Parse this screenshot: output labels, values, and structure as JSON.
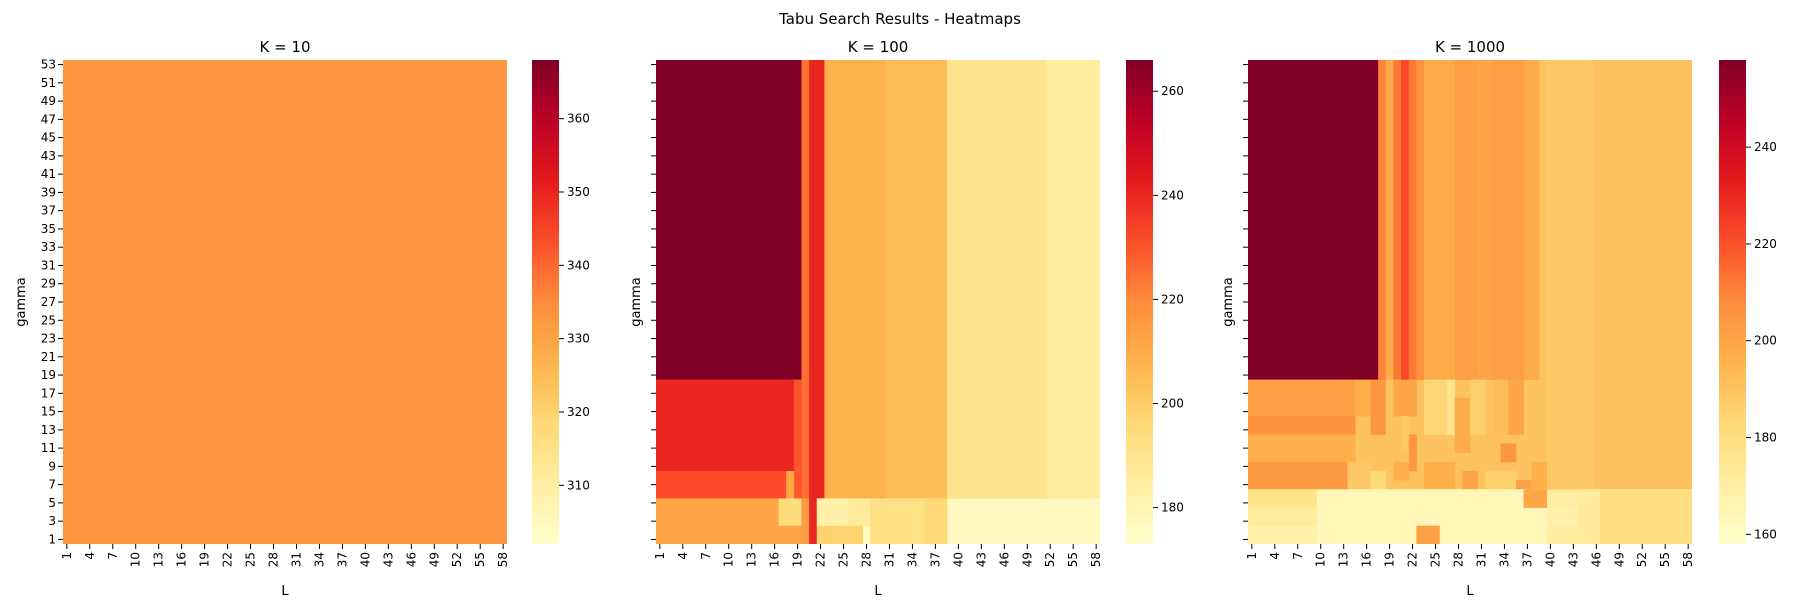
{
  "figure": {
    "suptitle": "Tabu Search Results - Heatmaps"
  },
  "colormap": {
    "name": "YlOrRd",
    "stops": [
      "#ffffcc",
      "#ffeda0",
      "#fed976",
      "#feb24c",
      "#fd8d3c",
      "#fc4e2a",
      "#e31a1c",
      "#bd0026",
      "#800026"
    ]
  },
  "chart_data": [
    {
      "type": "heatmap",
      "title": "K = 10",
      "xlabel": "L",
      "ylabel": "gamma",
      "x_tick_labels": [
        "1",
        "4",
        "7",
        "10",
        "13",
        "16",
        "19",
        "22",
        "25",
        "28",
        "31",
        "34",
        "37",
        "40",
        "43",
        "46",
        "49",
        "52",
        "55",
        "58"
      ],
      "y_tick_labels": [
        "53",
        "51",
        "49",
        "47",
        "45",
        "43",
        "41",
        "39",
        "37",
        "35",
        "33",
        "31",
        "29",
        "27",
        "25",
        "23",
        "21",
        "19",
        "17",
        "15",
        "13",
        "11",
        "9",
        "7",
        "5",
        "3",
        "1"
      ],
      "x_range": [
        1,
        59
      ],
      "y_range": [
        1,
        54
      ],
      "colorbar": {
        "range": [
          302,
          368
        ],
        "ticks": [
          "310",
          "320",
          "330",
          "340",
          "350",
          "360"
        ]
      },
      "regions": [
        {
          "L": [
            1,
            59
          ],
          "gamma": [
            1,
            54
          ],
          "value": 333
        }
      ]
    },
    {
      "type": "heatmap",
      "title": "K = 100",
      "xlabel": "L",
      "ylabel": "gamma",
      "show_y_tick_labels": false,
      "x_tick_labels": [
        "1",
        "4",
        "7",
        "10",
        "13",
        "16",
        "19",
        "22",
        "25",
        "28",
        "31",
        "34",
        "37",
        "40",
        "43",
        "46",
        "49",
        "52",
        "55",
        "58"
      ],
      "x_range": [
        1,
        59
      ],
      "y_range": [
        1,
        54
      ],
      "colorbar": {
        "range": [
          173,
          266
        ],
        "ticks": [
          "180",
          "200",
          "220",
          "240",
          "260"
        ]
      },
      "regions": [
        {
          "L": [
            1,
            59
          ],
          "gamma": [
            6,
            54
          ],
          "value": 203
        },
        {
          "L": [
            1,
            59
          ],
          "gamma": [
            1,
            6
          ],
          "value": 176
        },
        {
          "L": [
            1,
            20
          ],
          "gamma": [
            19,
            54
          ],
          "value": 266
        },
        {
          "L": [
            1,
            19
          ],
          "gamma": [
            9,
            19
          ],
          "value": 240
        },
        {
          "L": [
            1,
            18
          ],
          "gamma": [
            6,
            9
          ],
          "value": 232
        },
        {
          "L": [
            19,
            20
          ],
          "gamma": [
            6,
            19
          ],
          "value": 230
        },
        {
          "L": [
            18,
            19
          ],
          "gamma": [
            6,
            9
          ],
          "value": 212
        },
        {
          "L": [
            20,
            21
          ],
          "gamma": [
            6,
            54
          ],
          "value": 225
        },
        {
          "L": [
            21,
            23
          ],
          "gamma": [
            6,
            54
          ],
          "value": 240
        },
        {
          "L": [
            23,
            31
          ],
          "gamma": [
            6,
            54
          ],
          "value": 208
        },
        {
          "L": [
            31,
            39
          ],
          "gamma": [
            6,
            54
          ],
          "value": 205
        },
        {
          "L": [
            39,
            52
          ],
          "gamma": [
            6,
            54
          ],
          "value": 190
        },
        {
          "L": [
            52,
            59
          ],
          "gamma": [
            6,
            54
          ],
          "value": 185
        },
        {
          "L": [
            1,
            17
          ],
          "gamma": [
            1,
            6
          ],
          "value": 212
        },
        {
          "L": [
            17,
            20
          ],
          "gamma": [
            3,
            6
          ],
          "value": 195
        },
        {
          "L": [
            17,
            20
          ],
          "gamma": [
            1,
            3
          ],
          "value": 212
        },
        {
          "L": [
            20,
            21
          ],
          "gamma": [
            1,
            6
          ],
          "value": 215
        },
        {
          "L": [
            21,
            22
          ],
          "gamma": [
            1,
            6
          ],
          "value": 240
        },
        {
          "L": [
            22,
            26
          ],
          "gamma": [
            3,
            6
          ],
          "value": 182
        },
        {
          "L": [
            26,
            29
          ],
          "gamma": [
            3,
            6
          ],
          "value": 186
        },
        {
          "L": [
            22,
            28
          ],
          "gamma": [
            1,
            3
          ],
          "value": 198
        },
        {
          "L": [
            29,
            38
          ],
          "gamma": [
            1,
            6
          ],
          "value": 192
        },
        {
          "L": [
            36,
            39
          ],
          "gamma": [
            1,
            6
          ],
          "value": 196
        }
      ]
    },
    {
      "type": "heatmap",
      "title": "K = 1000",
      "xlabel": "L",
      "ylabel": "gamma",
      "show_y_tick_labels": false,
      "x_tick_labels": [
        "1",
        "4",
        "7",
        "10",
        "13",
        "16",
        "19",
        "22",
        "25",
        "28",
        "31",
        "34",
        "37",
        "40",
        "43",
        "46",
        "49",
        "52",
        "55",
        "58"
      ],
      "x_range": [
        1,
        59
      ],
      "y_range": [
        1,
        54
      ],
      "colorbar": {
        "range": [
          158,
          258
        ],
        "ticks": [
          "160",
          "180",
          "200",
          "220",
          "240"
        ]
      },
      "regions": [
        {
          "L": [
            1,
            59
          ],
          "gamma": [
            7,
            54
          ],
          "value": 190
        },
        {
          "L": [
            1,
            59
          ],
          "gamma": [
            1,
            7
          ],
          "value": 170
        },
        {
          "L": [
            1,
            18
          ],
          "gamma": [
            19,
            54
          ],
          "value": 258
        },
        {
          "L": [
            18,
            19
          ],
          "gamma": [
            19,
            54
          ],
          "value": 210
        },
        {
          "L": [
            19,
            20
          ],
          "gamma": [
            19,
            54
          ],
          "value": 198
        },
        {
          "L": [
            20,
            21
          ],
          "gamma": [
            19,
            54
          ],
          "value": 212
        },
        {
          "L": [
            21,
            22
          ],
          "gamma": [
            19,
            54
          ],
          "value": 222
        },
        {
          "L": [
            22,
            23
          ],
          "gamma": [
            19,
            54
          ],
          "value": 212
        },
        {
          "L": [
            23,
            24
          ],
          "gamma": [
            19,
            54
          ],
          "value": 206
        },
        {
          "L": [
            24,
            28
          ],
          "gamma": [
            19,
            54
          ],
          "value": 198
        },
        {
          "L": [
            28,
            31
          ],
          "gamma": [
            19,
            54
          ],
          "value": 202
        },
        {
          "L": [
            31,
            33
          ],
          "gamma": [
            19,
            54
          ],
          "value": 200
        },
        {
          "L": [
            33,
            37
          ],
          "gamma": [
            19,
            54
          ],
          "value": 202
        },
        {
          "L": [
            37,
            39
          ],
          "gamma": [
            19,
            54
          ],
          "value": 198
        },
        {
          "L": [
            40,
            46
          ],
          "gamma": [
            7,
            54
          ],
          "value": 188
        },
        {
          "L": [
            1,
            15
          ],
          "gamma": [
            15,
            19
          ],
          "value": 202
        },
        {
          "L": [
            1,
            15
          ],
          "gamma": [
            13,
            15
          ],
          "value": 206
        },
        {
          "L": [
            1,
            15
          ],
          "gamma": [
            10,
            13
          ],
          "value": 196
        },
        {
          "L": [
            1,
            14
          ],
          "gamma": [
            7,
            10
          ],
          "value": 204
        },
        {
          "L": [
            15,
            17
          ],
          "gamma": [
            15,
            19
          ],
          "value": 196
        },
        {
          "L": [
            17,
            19
          ],
          "gamma": [
            13,
            19
          ],
          "value": 205
        },
        {
          "L": [
            19,
            20
          ],
          "gamma": [
            11,
            19
          ],
          "value": 190
        },
        {
          "L": [
            20,
            23
          ],
          "gamma": [
            15,
            19
          ],
          "value": 200
        },
        {
          "L": [
            21,
            22
          ],
          "gamma": [
            11,
            15
          ],
          "value": 188
        },
        {
          "L": [
            22,
            23
          ],
          "gamma": [
            9,
            13
          ],
          "value": 205
        },
        {
          "L": [
            24,
            27
          ],
          "gamma": [
            13,
            19
          ],
          "value": 184
        },
        {
          "L": [
            27,
            28
          ],
          "gamma": [
            13,
            19
          ],
          "value": 176
        },
        {
          "L": [
            28,
            30
          ],
          "gamma": [
            11,
            17
          ],
          "value": 198
        },
        {
          "L": [
            30,
            32
          ],
          "gamma": [
            13,
            19
          ],
          "value": 186
        },
        {
          "L": [
            33,
            35
          ],
          "gamma": [
            13,
            19
          ],
          "value": 192
        },
        {
          "L": [
            35,
            37
          ],
          "gamma": [
            13,
            19
          ],
          "value": 200
        },
        {
          "L": [
            34,
            36
          ],
          "gamma": [
            10,
            12
          ],
          "value": 205
        },
        {
          "L": [
            14,
            17
          ],
          "gamma": [
            7,
            10
          ],
          "value": 188
        },
        {
          "L": [
            17,
            19
          ],
          "gamma": [
            7,
            9
          ],
          "value": 182
        },
        {
          "L": [
            20,
            22
          ],
          "gamma": [
            8,
            10
          ],
          "value": 196
        },
        {
          "L": [
            24,
            28
          ],
          "gamma": [
            7,
            10
          ],
          "value": 196
        },
        {
          "L": [
            29,
            31
          ],
          "gamma": [
            7,
            9
          ],
          "value": 200
        },
        {
          "L": [
            32,
            36
          ],
          "gamma": [
            7,
            9
          ],
          "value": 186
        },
        {
          "L": [
            36,
            38
          ],
          "gamma": [
            7,
            8
          ],
          "value": 202
        },
        {
          "L": [
            38,
            40
          ],
          "gamma": [
            7,
            10
          ],
          "value": 196
        },
        {
          "L": [
            1,
            59
          ],
          "gamma": [
            3,
            5
          ],
          "value": 168
        },
        {
          "L": [
            1,
            10
          ],
          "gamma": [
            5,
            7
          ],
          "value": 176
        },
        {
          "L": [
            1,
            10
          ],
          "gamma": [
            3,
            5
          ],
          "value": 172
        },
        {
          "L": [
            1,
            10
          ],
          "gamma": [
            1,
            3
          ],
          "value": 168
        },
        {
          "L": [
            10,
            40
          ],
          "gamma": [
            1,
            7
          ],
          "value": 164
        },
        {
          "L": [
            23,
            26
          ],
          "gamma": [
            1,
            3
          ],
          "value": 202
        },
        {
          "L": [
            37,
            40
          ],
          "gamma": [
            5,
            7
          ],
          "value": 200
        },
        {
          "L": [
            44,
            47
          ],
          "gamma": [
            1,
            7
          ],
          "value": 172
        },
        {
          "L": [
            47,
            59
          ],
          "gamma": [
            1,
            7
          ],
          "value": 180
        }
      ]
    }
  ]
}
